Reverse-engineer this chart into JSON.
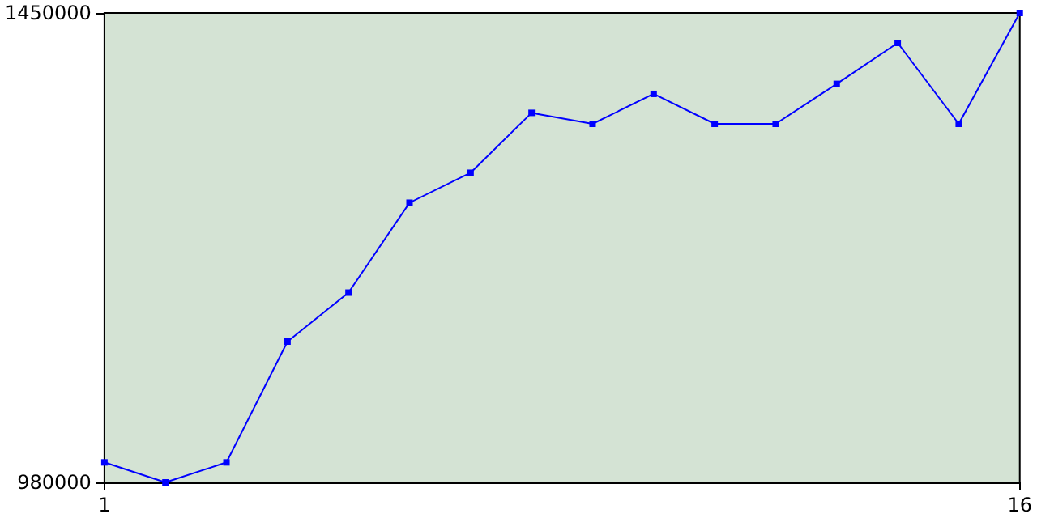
{
  "chart_data": {
    "type": "line",
    "x": [
      1,
      2,
      3,
      4,
      5,
      6,
      7,
      8,
      9,
      10,
      11,
      12,
      13,
      14,
      15,
      16
    ],
    "series": [
      {
        "color": "#0000ff",
        "values": [
          1000000,
          980000,
          1000000,
          1121000,
          1170000,
          1260000,
          1290000,
          1350000,
          1339000,
          1369000,
          1339000,
          1339000,
          1379000,
          1420000,
          1339000,
          1450000
        ]
      }
    ],
    "xlim": [
      1,
      16
    ],
    "xticks": [
      1,
      16
    ],
    "ylim": [
      980000,
      1450000
    ],
    "yticks": [
      980000,
      1450000
    ],
    "grid": false,
    "marker": "square",
    "line_style": "solid"
  }
}
